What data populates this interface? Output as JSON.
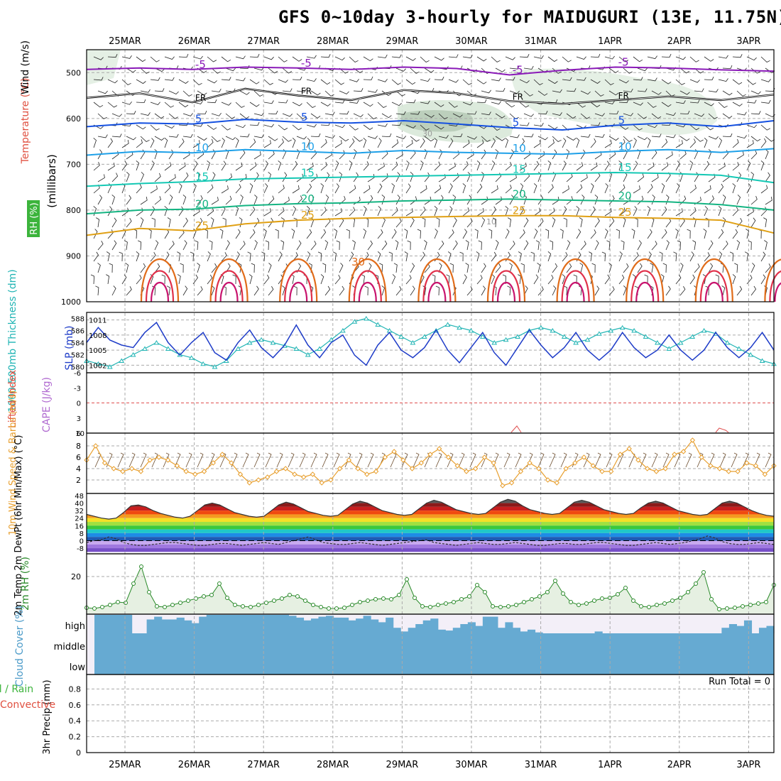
{
  "title": "GFS 0~10day 3-hourly for MAIDUGURI (13E, 11.75N)",
  "chart_data": {
    "type": "multi-panel meteogram",
    "dates": [
      "25MAR",
      "26MAR",
      "27MAR",
      "28MAR",
      "29MAR",
      "30MAR",
      "31MAR",
      "1APR",
      "2APR",
      "3APR"
    ],
    "upper_air": {
      "ylabel": "(millibars)",
      "side_labels": {
        "wind": "Wind (m/s)",
        "temperature": "Temperature (°C)",
        "rh": "RH (%)"
      },
      "pressure_ticks": [
        "500",
        "600",
        "700",
        "800",
        "900",
        "1000"
      ],
      "freezing_label": "FR",
      "isotherms": [
        {
          "label": "-5",
          "p": [
            493,
            490,
            493,
            488,
            490,
            493,
            488,
            491,
            505,
            495,
            488,
            490,
            494,
            497
          ],
          "color": "#8a1ab8"
        },
        {
          "label": "FR",
          "p": [
            555,
            545,
            565,
            535,
            550,
            560,
            538,
            545,
            562,
            568,
            560,
            552,
            560,
            548
          ],
          "color": "#000000"
        },
        {
          "label": "5",
          "p": [
            618,
            610,
            612,
            602,
            608,
            610,
            605,
            612,
            620,
            625,
            615,
            610,
            618,
            605
          ],
          "color": "#1450e0"
        },
        {
          "label": "10",
          "p": [
            680,
            672,
            675,
            668,
            672,
            676,
            670,
            674,
            676,
            678,
            672,
            668,
            674,
            666
          ],
          "color": "#1ea0e8"
        },
        {
          "label": "15",
          "p": [
            748,
            742,
            738,
            732,
            730,
            728,
            726,
            724,
            722,
            720,
            718,
            720,
            724,
            740
          ],
          "color": "#14c8b4"
        },
        {
          "label": "20",
          "p": [
            808,
            800,
            798,
            790,
            786,
            784,
            780,
            778,
            776,
            778,
            780,
            782,
            788,
            800
          ],
          "color": "#14b482"
        },
        {
          "label": "25",
          "p": [
            855,
            840,
            845,
            830,
            822,
            818,
            816,
            814,
            812,
            812,
            816,
            818,
            822,
            850
          ],
          "color": "#e0a014"
        }
      ],
      "contour_labels": [
        "-5",
        "FR",
        "5",
        "10",
        "15",
        "20",
        "25",
        "30",
        "10",
        "30"
      ]
    },
    "thickness_slp": {
      "left_label": "1000-500mb Thickness (dm)",
      "right_label": "SLP (mb)",
      "thickness_ticks": [
        "588",
        "586",
        "584",
        "582",
        "580"
      ],
      "slp_ticks": [
        "1011",
        "1008",
        "1005",
        "1002"
      ],
      "slp": [
        1006.5,
        1009.5,
        1007,
        1006,
        1005.5,
        1008.5,
        1010.5,
        1006.5,
        1004,
        1006.5,
        1008.5,
        1004.5,
        1003,
        1006.5,
        1009,
        1005.5,
        1003.5,
        1006,
        1010,
        1006,
        1003.5,
        1006.5,
        1008,
        1004,
        1002,
        1006,
        1008.5,
        1005,
        1003.5,
        1005.5,
        1009,
        1005,
        1002.5,
        1005.5,
        1008.5,
        1004.5,
        1002,
        1005.5,
        1009,
        1006,
        1003.5,
        1005.5,
        1008.5,
        1005,
        1003,
        1005,
        1008.5,
        1005.5,
        1003.5,
        1005,
        1008,
        1005,
        1003,
        1005,
        1008.5,
        1005.5,
        1003.5,
        1005.5,
        1008.5,
        1005
      ],
      "thickness": [
        581,
        580.5,
        580,
        581,
        582,
        583,
        584,
        583,
        582,
        581.5,
        580.5,
        580,
        581,
        583,
        584,
        584.5,
        584,
        583.5,
        583,
        582,
        583,
        584.5,
        586,
        587.5,
        588,
        587,
        586,
        585,
        584,
        585,
        586,
        587,
        586.5,
        586,
        585,
        584,
        584.5,
        585,
        586,
        586.5,
        586,
        585,
        584,
        584.5,
        585.5,
        586,
        586.5,
        586,
        585,
        584,
        583,
        584,
        585,
        586,
        585.5,
        584,
        583,
        582,
        581,
        580.5
      ]
    },
    "stability": {
      "left_label": "Lifted Index",
      "right_label": "CAPE (J/kg)",
      "li_ticks": [
        "-6",
        "-3",
        "0",
        "3",
        "6"
      ],
      "cape_ticks": [
        "10"
      ]
    },
    "wind10m": {
      "ylabel": "10m Wind Speed & Barbs (m/s)",
      "ticks": [
        "8",
        "6",
        "4",
        "2"
      ],
      "speed": [
        5.5,
        8,
        5,
        4,
        3.5,
        4,
        3.5,
        5.5,
        6,
        5.5,
        4.5,
        3.5,
        3,
        3.5,
        5,
        6.5,
        5,
        3,
        1.5,
        2,
        2.5,
        3.5,
        4,
        3,
        2.5,
        3,
        1.5,
        2,
        4,
        5.5,
        4,
        3,
        3.5,
        6,
        7,
        5.5,
        4,
        5,
        6.5,
        7.5,
        6,
        4.5,
        3.5,
        4,
        6,
        5,
        1,
        1.5,
        3.5,
        5,
        4,
        2,
        1.5,
        4,
        5,
        6,
        4.5,
        3.5,
        3.5,
        6.5,
        7.5,
        5.5,
        4,
        3.5,
        4,
        6.5,
        7,
        9,
        6,
        4.5,
        4,
        3.5,
        3.5,
        5,
        4.5,
        3,
        4.5
      ]
    },
    "temperature2m": {
      "ylabel": "2m Temp 2m DewPt (6hr Min/Max) (°C)",
      "ticks": [
        "48",
        "40",
        "32",
        "24",
        "16",
        "8",
        "0",
        "-8"
      ],
      "temp": [
        28,
        26,
        24,
        23,
        24,
        30,
        37,
        38,
        36,
        32,
        29,
        27,
        25,
        24,
        26,
        32,
        38,
        40,
        38,
        34,
        30,
        28,
        26,
        25,
        26,
        32,
        38,
        41,
        39,
        35,
        31,
        29,
        27,
        26,
        27,
        33,
        39,
        42,
        40,
        36,
        32,
        30,
        28,
        27,
        28,
        34,
        40,
        43,
        41,
        37,
        33,
        31,
        29,
        28,
        29,
        35,
        41,
        44,
        42,
        37,
        33,
        31,
        29,
        28,
        29,
        35,
        41,
        43,
        41,
        37,
        33,
        31,
        29,
        28,
        29,
        35,
        40,
        42,
        40,
        36,
        32,
        30,
        28,
        27,
        28,
        34,
        40,
        42,
        40,
        36,
        32,
        29,
        27,
        26
      ],
      "dewpt": [
        -2,
        0,
        1,
        4,
        2,
        -2,
        -4,
        -5,
        -5,
        -4,
        -3,
        -2,
        -2,
        -3,
        -4,
        -5,
        -5,
        -4,
        -3,
        -3,
        -4,
        -5,
        -4,
        -3,
        -2,
        -3,
        -4,
        -2,
        0,
        2,
        4,
        1,
        -2,
        -3,
        -4,
        -4,
        -3,
        -2,
        -3,
        -4,
        -5,
        -4,
        -3,
        -2,
        -1,
        0,
        1,
        -2,
        -3,
        -4,
        -5,
        -4,
        -3,
        -2,
        -3,
        -4,
        -4,
        -3,
        -2,
        -3,
        -4,
        -5,
        -5,
        -4,
        -3,
        -3,
        -4,
        -4,
        -3,
        -2,
        -2,
        -3,
        -4,
        -5,
        -5,
        -4,
        -3,
        -2,
        -3,
        -4,
        -3,
        -2,
        0,
        2,
        5,
        3,
        -1,
        -3,
        -4,
        -4,
        -3,
        -2,
        -3,
        -4
      ]
    },
    "rh2m": {
      "ylabel": "2m RH (%)",
      "ticks": [
        "20"
      ],
      "rh": [
        3,
        2.5,
        3.5,
        5,
        7,
        6.5,
        20,
        32,
        14,
        4,
        3.5,
        5,
        6.5,
        8,
        9.5,
        11,
        12,
        20,
        10,
        5,
        4,
        3.5,
        5,
        6.5,
        8,
        9.5,
        12,
        11,
        8,
        5,
        3.5,
        2.5,
        2.5,
        3,
        5,
        7,
        8,
        9,
        9.5,
        9,
        12,
        23,
        10,
        4,
        3.5,
        5,
        6,
        7,
        9,
        11,
        19,
        14,
        4,
        3.5,
        4,
        5,
        7,
        9,
        11,
        14,
        22,
        13,
        7,
        5,
        6,
        8,
        9.5,
        10,
        12.5,
        17,
        8,
        4,
        3.5,
        5,
        6,
        8,
        10,
        14,
        20,
        28,
        9,
        2,
        2.5,
        3,
        4,
        5,
        6,
        7,
        19
      ]
    },
    "cloud_cover": {
      "ylabel": "Cloud Cover (%)",
      "levels": [
        "high",
        "middle",
        "low"
      ]
    },
    "precip": {
      "ylabel": "3hr Precip (mm)",
      "side_labels": {
        "total": "Total / Rain",
        "convective": "Convective"
      },
      "ticks": [
        "0.8",
        "0.6",
        "0.4",
        "0.2",
        "0"
      ],
      "run_total": "Run Total = 0",
      "values": []
    }
  }
}
